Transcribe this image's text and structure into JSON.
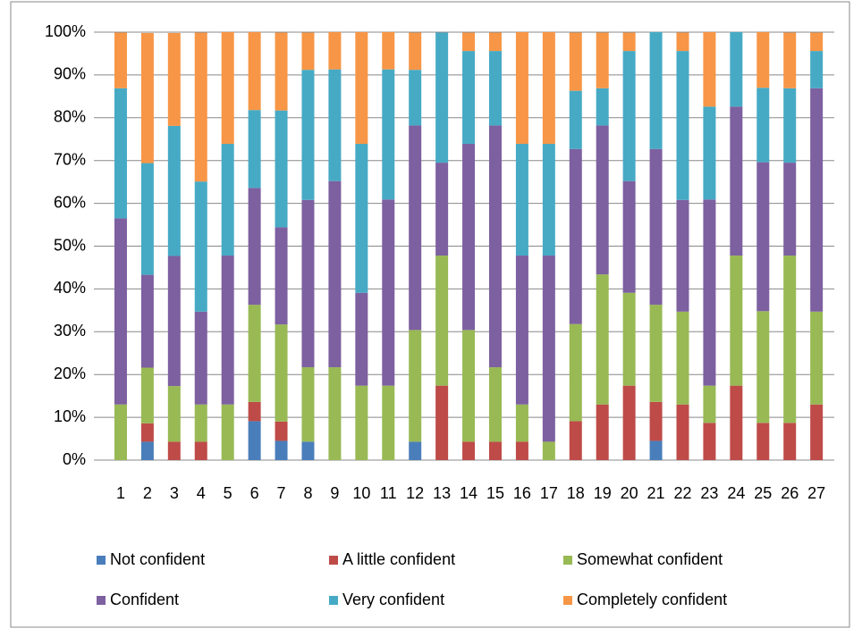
{
  "chart_data": {
    "type": "stacked_bar_100",
    "categories": [
      "1",
      "2",
      "3",
      "4",
      "5",
      "6",
      "7",
      "8",
      "9",
      "10",
      "11",
      "12",
      "13",
      "14",
      "15",
      "16",
      "17",
      "18",
      "19",
      "20",
      "21",
      "22",
      "23",
      "24",
      "25",
      "26",
      "27"
    ],
    "series": [
      {
        "name": "Not confident",
        "color": "#4a7ebb",
        "values": [
          0,
          4.3,
          0,
          0,
          0,
          9.1,
          4.5,
          4.3,
          0,
          0,
          0,
          4.3,
          0,
          0,
          0,
          0,
          0,
          0,
          0,
          0,
          4.5,
          0,
          0,
          0,
          0,
          0,
          0
        ]
      },
      {
        "name": "A little confident",
        "color": "#be4b48",
        "values": [
          0,
          4.3,
          4.3,
          4.3,
          0,
          4.5,
          4.5,
          0,
          0,
          0,
          0,
          0,
          17.4,
          4.3,
          4.3,
          4.3,
          0,
          9.1,
          13.0,
          17.4,
          9.1,
          13.0,
          8.7,
          17.4,
          8.7,
          8.7,
          13.0
        ]
      },
      {
        "name": "Somewhat confident",
        "color": "#98b954",
        "values": [
          13.0,
          13.0,
          13.0,
          8.7,
          13.0,
          22.7,
          22.7,
          17.4,
          21.7,
          17.4,
          17.4,
          26.1,
          30.4,
          26.1,
          17.4,
          8.7,
          4.3,
          22.7,
          30.4,
          21.7,
          22.7,
          21.7,
          8.7,
          30.4,
          26.1,
          39.1,
          21.7
        ]
      },
      {
        "name": "Confident",
        "color": "#7d60a0",
        "values": [
          43.5,
          21.7,
          30.4,
          21.7,
          34.8,
          27.3,
          22.7,
          39.1,
          43.5,
          21.7,
          43.5,
          47.8,
          21.7,
          43.5,
          56.5,
          34.8,
          43.5,
          40.9,
          34.8,
          26.1,
          36.4,
          26.1,
          43.5,
          34.8,
          34.8,
          21.7,
          52.2
        ]
      },
      {
        "name": "Very confident",
        "color": "#46aac5",
        "values": [
          30.4,
          26.1,
          30.4,
          30.4,
          26.1,
          18.2,
          27.3,
          30.4,
          26.1,
          34.8,
          30.4,
          13.0,
          30.4,
          21.7,
          17.4,
          26.1,
          26.1,
          13.6,
          8.7,
          30.4,
          27.3,
          34.8,
          21.7,
          17.4,
          17.4,
          17.4,
          8.7
        ]
      },
      {
        "name": "Completely confident",
        "color": "#f79646",
        "values": [
          13.0,
          30.4,
          21.7,
          34.8,
          26.1,
          18.2,
          18.2,
          8.7,
          8.7,
          26.1,
          8.7,
          8.7,
          0,
          4.3,
          4.3,
          26.1,
          26.1,
          13.6,
          13.0,
          4.3,
          0,
          4.3,
          17.4,
          0,
          13.0,
          13.0,
          4.3
        ]
      }
    ],
    "ylim": [
      0,
      100
    ],
    "yticks": [
      {
        "value": 0,
        "label": "0%"
      },
      {
        "value": 10,
        "label": "10%"
      },
      {
        "value": 20,
        "label": "20%"
      },
      {
        "value": 30,
        "label": "30%"
      },
      {
        "value": 40,
        "label": "40%"
      },
      {
        "value": 50,
        "label": "50%"
      },
      {
        "value": 60,
        "label": "60%"
      },
      {
        "value": 70,
        "label": "70%"
      },
      {
        "value": 80,
        "label": "80%"
      },
      {
        "value": 90,
        "label": "90%"
      },
      {
        "value": 100,
        "label": "100%"
      }
    ],
    "grid": true,
    "legend": "bottom"
  }
}
